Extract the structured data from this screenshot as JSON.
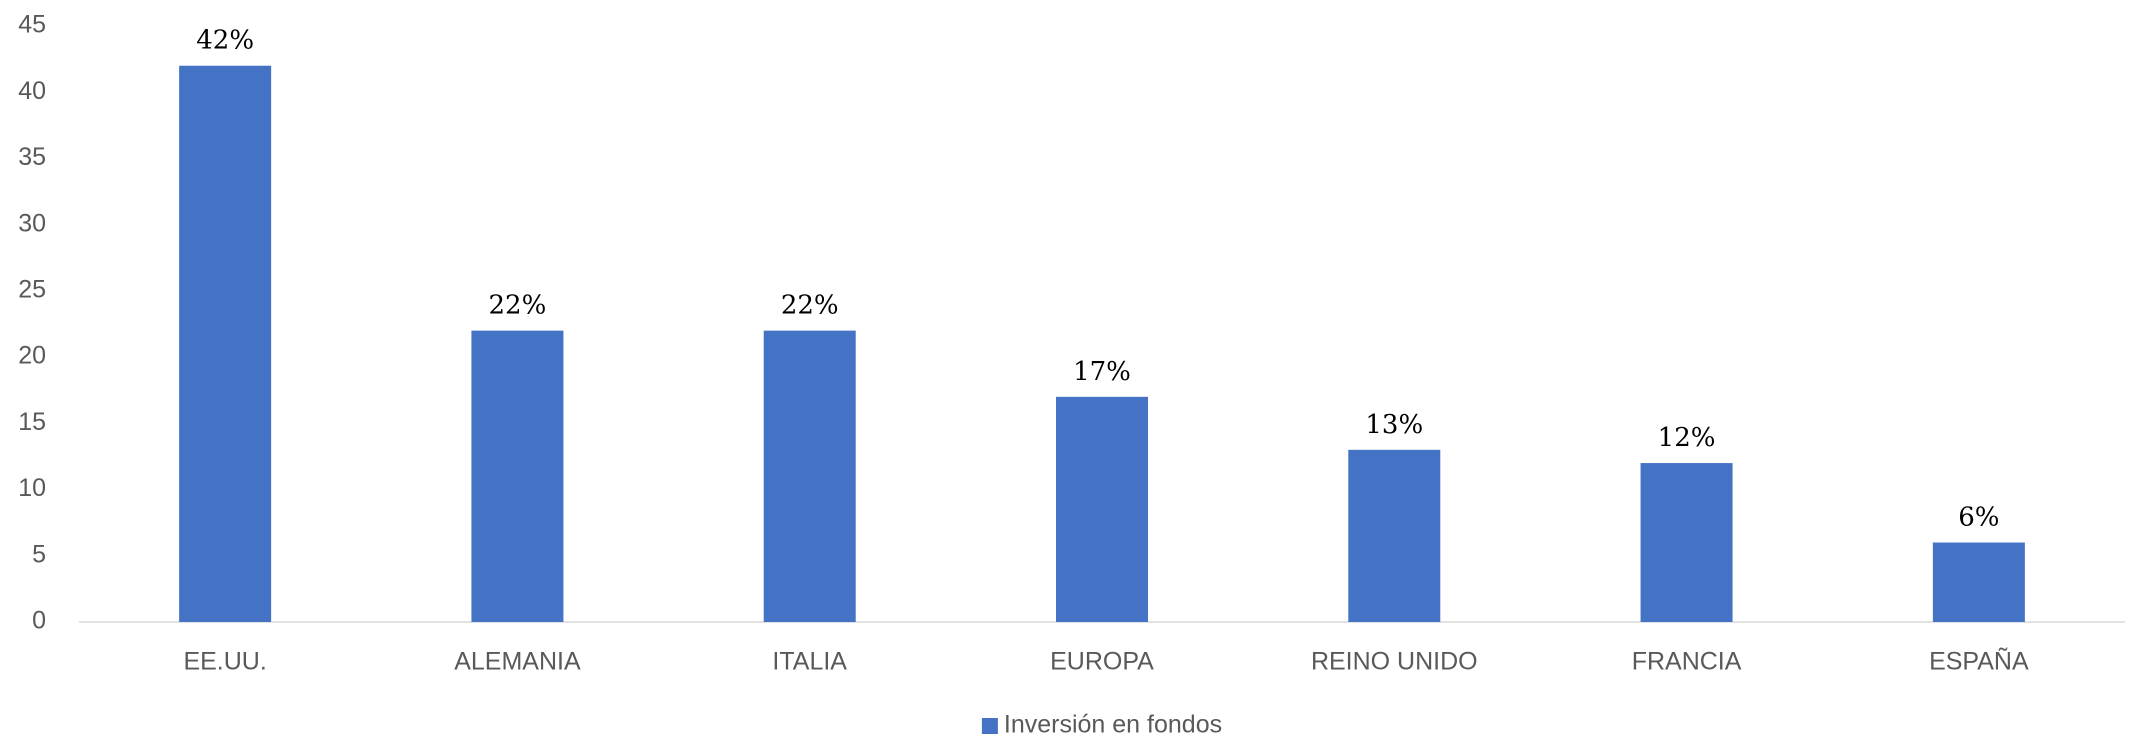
{
  "chart_data": {
    "type": "bar",
    "categories": [
      "EE.UU.",
      "ALEMANIA",
      "ITALIA",
      "EUROPA",
      "REINO UNIDO",
      "FRANCIA",
      "ESPAÑA"
    ],
    "series": [
      {
        "name": "Inversión en fondos",
        "color": "#4472c4",
        "values": [
          42,
          22,
          22,
          17,
          13,
          12,
          6
        ],
        "value_labels": [
          "42%",
          "22%",
          "22%",
          "17%",
          "13%",
          "12%",
          "6%"
        ]
      }
    ],
    "ylim": [
      0,
      45
    ],
    "yticks": [
      0,
      5,
      10,
      15,
      20,
      25,
      30,
      35,
      40,
      45
    ],
    "grid": false,
    "legend": "bottom"
  }
}
